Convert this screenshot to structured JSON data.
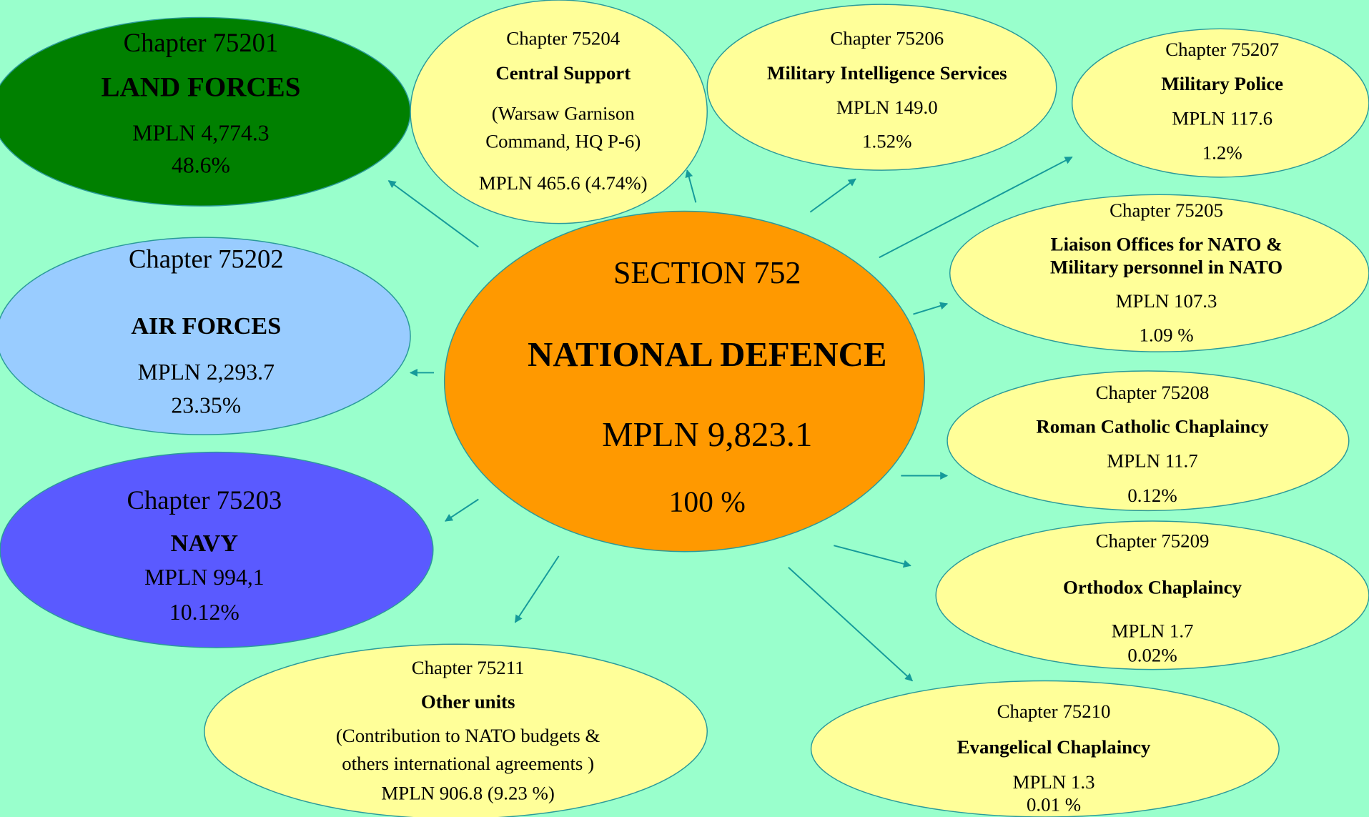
{
  "nodes": [
    {
      "lines": [
        "Chapter 75201",
        "LAND FORCES",
        "MPLN  4,774.3",
        "48.6%"
      ]
    },
    {
      "lines": [
        "Chapter 75204",
        "Central Support",
        "(Warsaw  Garnison",
        "Command,    HQ P-6)",
        "MPLN 465.6 (4.74%)"
      ]
    },
    {
      "lines": [
        "Chapter 75206",
        "Military Intelligence Services",
        "MPLN  149.0",
        "1.52%"
      ]
    },
    {
      "lines": [
        "Chapter 75207",
        "Military Police",
        "MPLN   117.6",
        "1.2%"
      ]
    },
    {
      "lines": [
        "Chapter 75202",
        "AIR FORCES",
        "MPLN   2,293.7",
        "23.35%"
      ]
    },
    {
      "lines": [
        "Chapter  75205",
        "Liaison Offices for NATO &",
        "Military personnel in NATO",
        "MPLN   107.3",
        "1.09 %"
      ]
    },
    {
      "lines": [
        "SECTION  752",
        "NATIONAL DEFENCE",
        "MPLN  9,823.1",
        "100 %"
      ]
    },
    {
      "lines": [
        "Chapter 75208",
        "Roman Catholic Chaplaincy",
        "MPLN    11.7",
        "0.12%"
      ]
    },
    {
      "lines": [
        "Chapter 75203",
        "NAVY",
        "MPLN  994,1",
        "10.12%"
      ]
    },
    {
      "lines": [
        "Chapter 75209",
        "Orthodox Chaplaincy",
        "MPLN   1.7",
        "0.02%"
      ]
    },
    {
      "lines": [
        "Chapter 75211",
        "Other units",
        "(Contribution to NATO budgets &",
        "others   international agreements )",
        "MPLN  906.8   (9.23 %)"
      ]
    },
    {
      "lines": [
        "Chapter 75210",
        "Evangelical Chaplaincy",
        "MPLN      1.3",
        "0.01 %"
      ]
    }
  ]
}
